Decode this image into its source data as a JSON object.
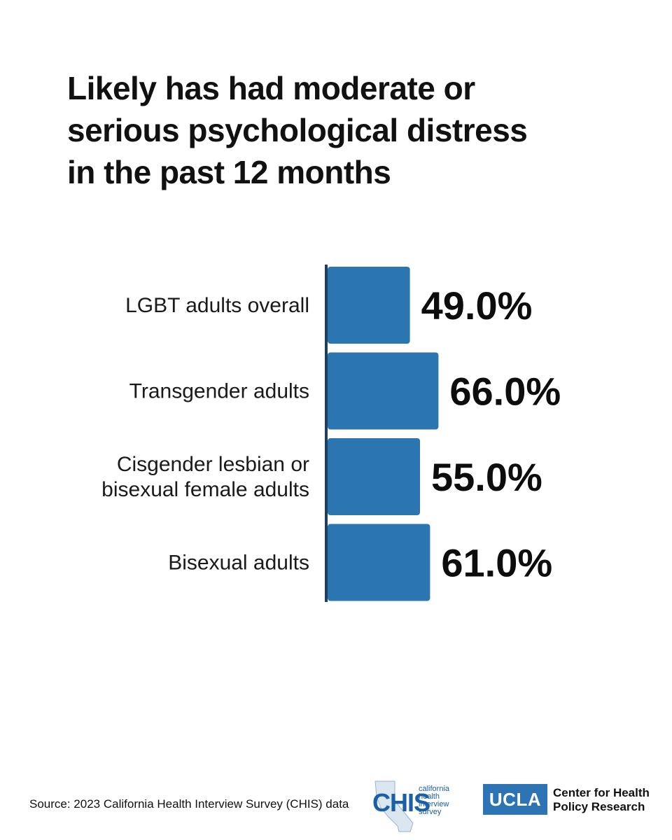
{
  "title": {
    "line1": "Likely has had moderate or",
    "line2": "serious psychological distress",
    "line3": "in the past 12 months"
  },
  "chart_data": {
    "type": "bar",
    "orientation": "horizontal",
    "title": "Likely has had moderate or serious psychological distress in the past 12 months",
    "categories": [
      [
        "LGBT adults overall"
      ],
      [
        "Transgender adults"
      ],
      [
        "Cisgender lesbian or",
        "bisexual female adults"
      ],
      [
        "Bisexual adults"
      ]
    ],
    "values": [
      49.0,
      66.0,
      55.0,
      61.0
    ],
    "value_labels": [
      "49.0%",
      "66.0%",
      "55.0%",
      "61.0%"
    ],
    "unit": "%",
    "bar_color": "#2b75b0",
    "axis_color": "#1e3f5e",
    "grid": false,
    "legend": "none"
  },
  "footer": {
    "source": "Source: 2023 California Health Interview Survey (CHIS) data",
    "chis_logo": {
      "word": "CHIS",
      "sub": [
        "california",
        "health",
        "interview",
        "survey"
      ]
    },
    "ucla_logo": {
      "box": "UCLA",
      "line1": "Center for Health",
      "line2": "Policy Research"
    }
  },
  "colors": {
    "background": "#ffffff",
    "text": "#111111",
    "brand_blue": "#2d74b5"
  }
}
